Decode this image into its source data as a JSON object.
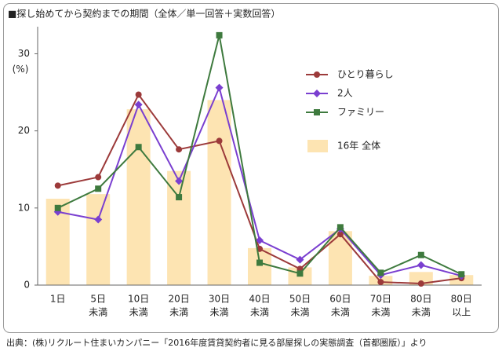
{
  "chart_data": {
    "type": "bar-line",
    "title": "■探し始めてから契約までの期間（全体／単一回答＋実数回答）",
    "y_label": "(%)",
    "source": "出典：(株)リクルート住まいカンパニー「2016年度賃貸契約者に見る部屋探しの実態調査（首都圏版）」より",
    "categories": [
      [
        "1日"
      ],
      [
        "5日",
        "未満"
      ],
      [
        "10日",
        "未満"
      ],
      [
        "20日",
        "未満"
      ],
      [
        "30日",
        "未満"
      ],
      [
        "40日",
        "未満"
      ],
      [
        "50日",
        "未満"
      ],
      [
        "60日",
        "未満"
      ],
      [
        "70日",
        "未満"
      ],
      [
        "80日",
        "未満"
      ],
      [
        "80日",
        "以上"
      ]
    ],
    "bars": {
      "name": "16年 全体",
      "color": "#fde4b2",
      "values": [
        11.2,
        11.8,
        22.8,
        14.8,
        24.0,
        4.8,
        2.3,
        7.0,
        1.2,
        1.7,
        1.3
      ]
    },
    "series": [
      {
        "name": "ひとり暮らし",
        "color": "#9c3a3a",
        "marker": "circle",
        "values": [
          12.9,
          14.0,
          24.7,
          17.6,
          18.7,
          4.7,
          2.1,
          6.6,
          0.4,
          0.2,
          0.9
        ]
      },
      {
        "name": "2人",
        "color": "#7a3fd0",
        "marker": "diamond",
        "values": [
          9.5,
          8.5,
          23.4,
          13.5,
          25.6,
          5.8,
          3.3,
          7.3,
          1.3,
          2.6,
          1.2
        ]
      },
      {
        "name": "ファミリー",
        "color": "#3e7a3e",
        "marker": "square",
        "values": [
          10.0,
          12.5,
          17.9,
          11.4,
          32.4,
          2.9,
          1.5,
          7.5,
          1.6,
          3.9,
          1.4
        ]
      }
    ],
    "ylim": [
      0,
      33
    ],
    "yticks": [
      0,
      10,
      20,
      30
    ],
    "grid": false
  }
}
